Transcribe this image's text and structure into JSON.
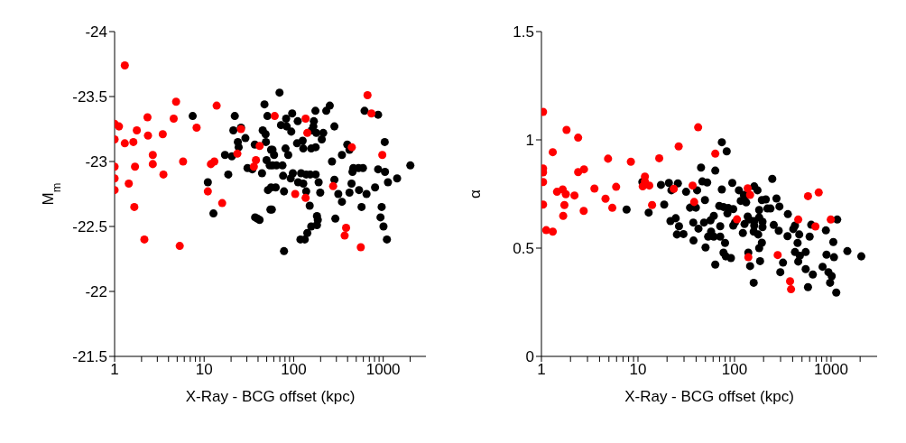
{
  "chart_data": [
    {
      "type": "scatter",
      "xlabel": "X-Ray - BCG offset (kpc)",
      "ylabel": "M$_{m}$",
      "log": "x",
      "marker": "circle",
      "grid": false,
      "xlim": [
        1,
        3000
      ],
      "ylim": [
        -21.5,
        -24
      ],
      "xticks": [
        1,
        {
          "value": 2,
          "label": null
        },
        {
          "value": 3,
          "label": null
        },
        {
          "value": 4,
          "label": null
        },
        {
          "value": 5,
          "label": null
        },
        {
          "value": 6,
          "label": null
        },
        {
          "value": 7,
          "label": null
        },
        {
          "value": 8,
          "label": null
        },
        {
          "value": 9,
          "label": null
        },
        10,
        {
          "value": 20,
          "label": null
        },
        {
          "value": 30,
          "label": null
        },
        {
          "value": 40,
          "label": null
        },
        {
          "value": 50,
          "label": null
        },
        {
          "value": 60,
          "label": null
        },
        {
          "value": 70,
          "label": null
        },
        {
          "value": 80,
          "label": null
        },
        {
          "value": 90,
          "label": null
        },
        100,
        {
          "value": 200,
          "label": null
        },
        {
          "value": 300,
          "label": null
        },
        {
          "value": 400,
          "label": null
        },
        {
          "value": 500,
          "label": null
        },
        {
          "value": 600,
          "label": null
        },
        {
          "value": 700,
          "label": null
        },
        {
          "value": 800,
          "label": null
        },
        {
          "value": 900,
          "label": null
        },
        1000,
        {
          "value": 2000,
          "label": null
        }
      ],
      "yticks": [
        -24,
        -23.5,
        -23,
        -22.5,
        -22,
        -21.5
      ],
      "series": [
        {
          "color": "#000000",
          "x": [
            7.45,
            22,
            21.2,
            25.8,
            23.8,
            24.3,
            28.9,
            17.1,
            20.4,
            18.6,
            11,
            12.7,
            36.8,
            47.2,
            50.9,
            45.1,
            48.6,
            49,
            55.9,
            49.8,
            54,
            30.5,
            34.5,
            44.3,
            51.6,
            55,
            37.1,
            39.4,
            41.6,
            69.5,
            82.4,
            96.2,
            111,
            72.2,
            83.6,
            94,
            58,
            60.4,
            81.1,
            86.9,
            58,
            64.3,
            75,
            76.2,
            92.6,
            97.9,
            121,
            138,
            153,
            176,
            55.9,
            63,
            78,
            112,
            128,
            138,
            198,
            190,
            151,
            57,
            182,
            186,
            157,
            182,
            142,
            119,
            133,
            78,
            175,
            168,
            166,
            159,
            179,
            214,
            206,
            109,
            126,
            128,
            157,
            176,
            231,
            253,
            285,
            268,
            285,
            315,
            346,
            292,
            346,
            397,
            420,
            420,
            443,
            454,
            464,
            530,
            594,
            537,
            651,
            573,
            619,
            877,
            1040,
            877,
            1047,
            1130,
            811,
            1430,
            2010,
            961,
            933,
            1007,
            1100
          ],
          "values": [
            -23.35,
            -23.35,
            -23.24,
            -23.26,
            -23.15,
            -23.11,
            -23.18,
            -23.05,
            -23.04,
            -22.9,
            -22.84,
            -22.6,
            -23.13,
            -23.44,
            -23.35,
            -23.24,
            -23.21,
            -23.15,
            -23.09,
            -23.01,
            -22.97,
            -22.95,
            -22.94,
            -22.91,
            -22.78,
            -22.63,
            -22.57,
            -22.56,
            -22.55,
            -23.53,
            -23.33,
            -23.37,
            -23.31,
            -23.28,
            -23.27,
            -23.23,
            -23.09,
            -23.05,
            -23.1,
            -23.05,
            -22.97,
            -22.97,
            -22.97,
            -22.89,
            -22.87,
            -22.91,
            -22.91,
            -22.9,
            -22.9,
            -22.9,
            -22.8,
            -22.8,
            -22.77,
            -22.84,
            -22.83,
            -22.77,
            -22.76,
            -22.84,
            -22.66,
            -22.63,
            -22.58,
            -22.55,
            -22.5,
            -22.51,
            -22.45,
            -22.4,
            -22.4,
            -22.31,
            -23.39,
            -23.31,
            -23.27,
            -23.24,
            -23.22,
            -23.22,
            -23.17,
            -23.14,
            -23.16,
            -23.1,
            -23.1,
            -23.11,
            -23.39,
            -23.43,
            -23.27,
            -23,
            -22.86,
            -22.75,
            -22.69,
            -22.56,
            -23.05,
            -23.13,
            -23.09,
            -22.76,
            -22.83,
            -22.92,
            -22.95,
            -22.95,
            -22.95,
            -22.78,
            -22.75,
            -22.65,
            -23.39,
            -23.36,
            -23.15,
            -22.94,
            -22.92,
            -22.84,
            -22.8,
            -22.87,
            -22.97,
            -22.65,
            -22.57,
            -22.5,
            -22.4
          ]
        },
        {
          "color": "#ff0000",
          "x": [
            1.3,
            4.86,
            13.8,
            2.33,
            4.57,
            8.24,
            1,
            1.12,
            1.77,
            25.8,
            1,
            1.3,
            1.62,
            2.36,
            3.45,
            2.67,
            2.67,
            5.82,
            1,
            1.69,
            3.51,
            1,
            1.44,
            1,
            1.66,
            2.15,
            5.34,
            11.9,
            13,
            11,
            15.9,
            23.5,
            41.7,
            37.9,
            35.9,
            61.4,
            136,
            142,
            668,
            739,
            446,
            977,
            276,
            104,
            136,
            385,
            371,
            562
          ],
          "values": [
            -23.74,
            -23.46,
            -23.43,
            -23.34,
            -23.33,
            -23.26,
            -23.29,
            -23.27,
            -23.24,
            -23.25,
            -23.17,
            -23.14,
            -23.15,
            -23.2,
            -23.21,
            -23.05,
            -22.98,
            -23,
            -22.96,
            -22.96,
            -22.9,
            -22.87,
            -22.83,
            -22.78,
            -22.65,
            -22.4,
            -22.35,
            -22.98,
            -23,
            -22.77,
            -22.68,
            -23.06,
            -23.12,
            -23.01,
            -22.96,
            -23.35,
            -23.33,
            -23.22,
            -23.51,
            -23.37,
            -23.11,
            -23.05,
            -22.81,
            -22.75,
            -22.72,
            -22.49,
            -22.43,
            -22.34
          ]
        }
      ]
    },
    {
      "type": "scatter",
      "xlabel": "X-Ray - BCG offset (kpc)",
      "ylabel": "α",
      "log": "x",
      "marker": "circle",
      "grid": false,
      "xlim": [
        1,
        3000
      ],
      "ylim": [
        0,
        1.5
      ],
      "xticks": [
        1,
        {
          "value": 2,
          "label": null
        },
        {
          "value": 3,
          "label": null
        },
        {
          "value": 4,
          "label": null
        },
        {
          "value": 5,
          "label": null
        },
        {
          "value": 6,
          "label": null
        },
        {
          "value": 7,
          "label": null
        },
        {
          "value": 8,
          "label": null
        },
        {
          "value": 9,
          "label": null
        },
        10,
        {
          "value": 20,
          "label": null
        },
        {
          "value": 30,
          "label": null
        },
        {
          "value": 40,
          "label": null
        },
        {
          "value": 50,
          "label": null
        },
        {
          "value": 60,
          "label": null
        },
        {
          "value": 70,
          "label": null
        },
        {
          "value": 80,
          "label": null
        },
        {
          "value": 90,
          "label": null
        },
        100,
        {
          "value": 200,
          "label": null
        },
        {
          "value": 300,
          "label": null
        },
        {
          "value": 400,
          "label": null
        },
        {
          "value": 500,
          "label": null
        },
        {
          "value": 600,
          "label": null
        },
        {
          "value": 700,
          "label": null
        },
        {
          "value": 800,
          "label": null
        },
        {
          "value": 900,
          "label": null
        },
        1000,
        {
          "value": 2000,
          "label": null
        }
      ],
      "yticks": [
        0,
        0.5,
        1,
        1.5
      ],
      "series": [
        {
          "color": "#000000",
          "x": [
            7.62,
            12.9,
            11.1,
            17.3,
            20.9,
            25.9,
            22.2,
            18.7,
            21.7,
            24.6,
            26.6,
            25.3,
            29.6,
            31.5,
            41,
            45,
            46.4,
            52.1,
            34.6,
            39.8,
            49.4,
            48.3,
            37.4,
            42.3,
            37.6,
            50.1,
            53.3,
            56.4,
            57.2,
            73.9,
            83,
            63.2,
            73.9,
            94.8,
            111,
            116,
            127,
            132,
            125,
            69.5,
            76.9,
            86.4,
            97,
            84.4,
            61,
            71.1,
            61,
            71.1,
            79.8,
            76.9,
            81.2,
            91.8,
            63.2,
            97,
            101,
            127,
            137,
            142,
            160,
            180,
            195,
            160,
            195,
            158,
            176,
            122,
            192,
            180,
            139,
            145,
            184,
            158,
            160,
            173,
            192,
            211,
            180,
            219,
            236,
            246,
            272,
            292,
            255,
            287,
            318,
            298,
            357,
            354,
            406,
            423,
            468,
            450,
            423,
            475,
            457,
            546,
            546,
            647,
            577,
            623,
            600,
            884,
            897,
            817,
            939,
            1016,
            977,
            1055,
            1072,
            1132,
            1158,
            1475,
            2057
          ],
          "values": [
            0.678,
            0.664,
            0.805,
            0.792,
            0.801,
            0.799,
            0.767,
            0.701,
            0.625,
            0.638,
            0.601,
            0.563,
            0.565,
            0.76,
            0.767,
            0.872,
            0.808,
            0.803,
            0.687,
            0.687,
            0.722,
            0.618,
            0.618,
            0.59,
            0.535,
            0.503,
            0.553,
            0.628,
            0.576,
            0.989,
            0.947,
            0.858,
            0.771,
            0.801,
            0.767,
            0.718,
            0.732,
            0.711,
            0.746,
            0.695,
            0.69,
            0.685,
            0.68,
            0.66,
            0.649,
            0.601,
            0.553,
            0.553,
            0.524,
            0.479,
            0.462,
            0.454,
            0.424,
            0.604,
            0.618,
            0.611,
            0.646,
            0.632,
            0.625,
            0.642,
            0.622,
            0.604,
            0.597,
            0.576,
            0.563,
            0.57,
            0.525,
            0.5,
            0.479,
            0.417,
            0.44,
            0.34,
            0.785,
            0.767,
            0.722,
            0.725,
            0.676,
            0.683,
            0.683,
            0.82,
            0.729,
            0.692,
            0.607,
            0.58,
            0.433,
            0.389,
            0.657,
            0.555,
            0.588,
            0.604,
            0.563,
            0.524,
            0.482,
            0.465,
            0.438,
            0.482,
            0.403,
            0.378,
            0.32,
            0.608,
            0.553,
            0.582,
            0.47,
            0.414,
            0.389,
            0.371,
            0.34,
            0.528,
            0.458,
            0.295,
            0.632,
            0.486,
            0.462
          ]
        },
        {
          "color": "#ff0000",
          "x": [
            1.04,
            1.82,
            2.4,
            1.31,
            1.04,
            1.04,
            1.04,
            1.45,
            1.66,
            1.79,
            2.2,
            2.4,
            2.76,
            1.73,
            1.68,
            2.74,
            1.04,
            1.12,
            1.31,
            3.54,
            4.61,
            5.42,
            5.94,
            4.9,
            8.44,
            16.6,
            26.4,
            42,
            11.8,
            11.8,
            11.2,
            13.1,
            14,
            23.5,
            36.8,
            38.2,
            63.2,
            137,
            145,
            106,
            139,
            280,
            376,
            385,
            457,
            577,
            689,
            745,
            993
          ],
          "values": [
            1.129,
            1.046,
            1.01,
            0.943,
            0.868,
            0.85,
            0.805,
            0.76,
            0.771,
            0.749,
            0.743,
            0.851,
            0.864,
            0.699,
            0.649,
            0.672,
            0.701,
            0.583,
            0.576,
            0.775,
            0.728,
            0.686,
            0.783,
            0.913,
            0.899,
            0.915,
            0.97,
            1.058,
            0.83,
            0.808,
            0.785,
            0.789,
            0.699,
            0.774,
            0.789,
            0.713,
            0.936,
            0.776,
            0.746,
            0.633,
            0.458,
            0.468,
            0.347,
            0.31,
            0.632,
            0.74,
            0.6,
            0.757,
            0.632
          ]
        }
      ]
    }
  ]
}
